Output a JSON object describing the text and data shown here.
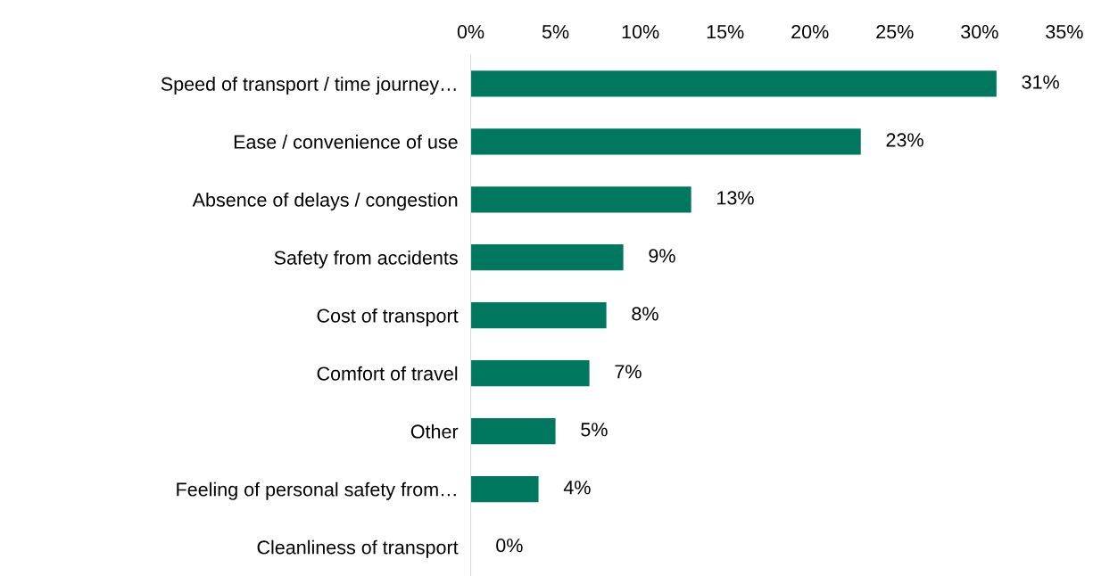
{
  "chart_data": {
    "type": "bar",
    "orientation": "horizontal",
    "categories": [
      "Speed of transport / time journey…",
      "Ease / convenience of use",
      "Absence of delays / congestion",
      "Safety from accidents",
      "Cost of transport",
      "Comfort of travel",
      "Other",
      "Feeling of personal safety from…",
      "Cleanliness of transport"
    ],
    "values": [
      31,
      23,
      13,
      9,
      8,
      7,
      5,
      4,
      0
    ],
    "value_labels": [
      "31%",
      "23%",
      "13%",
      "9%",
      "8%",
      "7%",
      "5%",
      "4%",
      "0%"
    ],
    "color": "#00775f",
    "xlim": [
      0,
      35
    ],
    "xticks": [
      {
        "value": 0,
        "label": "0%"
      },
      {
        "value": 5,
        "label": "5%"
      },
      {
        "value": 10,
        "label": "10%"
      },
      {
        "value": 15,
        "label": "15%"
      },
      {
        "value": 20,
        "label": "20%"
      },
      {
        "value": 25,
        "label": "25%"
      },
      {
        "value": 30,
        "label": "30%"
      },
      {
        "value": 35,
        "label": "35%"
      }
    ],
    "grid": false,
    "legend": false
  }
}
